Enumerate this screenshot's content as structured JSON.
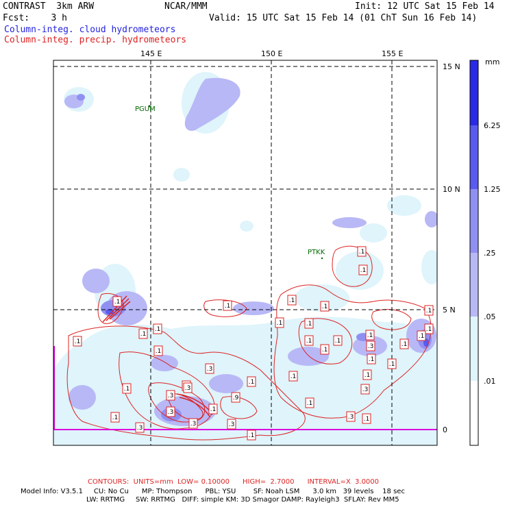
{
  "header": {
    "model": "CONTRAST  3km ARW",
    "center": "NCAR/MMM",
    "init": "Init: 12 UTC Sat 15 Feb 14",
    "fcst": "Fcst:    3 h",
    "valid": "Valid: 15 UTC Sat 15 Feb 14 (01 ChT Sun 16 Feb 14)",
    "field1": "Column-integ. cloud hydrometeors",
    "field2": "Column-integ. precip. hydrometeors"
  },
  "axes": {
    "lon_labels": [
      "145 E",
      "150 E",
      "155 E"
    ],
    "lat_labels": [
      "15 N",
      "10 N",
      "5 N",
      "0"
    ]
  },
  "stations": [
    "PGUM",
    "PTKK"
  ],
  "colorbar": {
    "unit": "mm",
    "levels": [
      "6.25",
      "1.25",
      ".25",
      ".05",
      ".01"
    ],
    "colors": [
      "#2a2ae6",
      "#5a5aee",
      "#9090f2",
      "#b8b8f6",
      "#dff4fb",
      "#ffffff"
    ]
  },
  "contour_labels": [
    ".1",
    ".1",
    ".1",
    ".1",
    ".1",
    ".1",
    ".1",
    ".1",
    ".1",
    ".1",
    ".1",
    ".1",
    ".1",
    ".1",
    ".1",
    ".1",
    ".1",
    ".1",
    ".1",
    ".1",
    ".1",
    ".1",
    ".1",
    ".1",
    ".1",
    ".1",
    ".1",
    ".1",
    ".1",
    ".1",
    ".1",
    ".1",
    ".3",
    ".3",
    ".3",
    ".3",
    ".3",
    ".3",
    ".3",
    ".3",
    ".3",
    ".3",
    ".9"
  ],
  "footer": {
    "contours": "CONTOURS:  UNITS=mm  LOW= 0.10000      HIGH=  2.7000      INTERVAL=X  3.0000",
    "model_info_1": "Model Info: V3.5.1     CU: No Cu      MP: Thompson      PBL: YSU        SF: Noah LSM      3.0 km   39 levels    18 sec",
    "model_info_2": "LW: RRTMG     SW: RRTMG   DIFF: simple KM: 3D Smagor DAMP: Rayleigh3  SFLAY: Rev MM5"
  }
}
